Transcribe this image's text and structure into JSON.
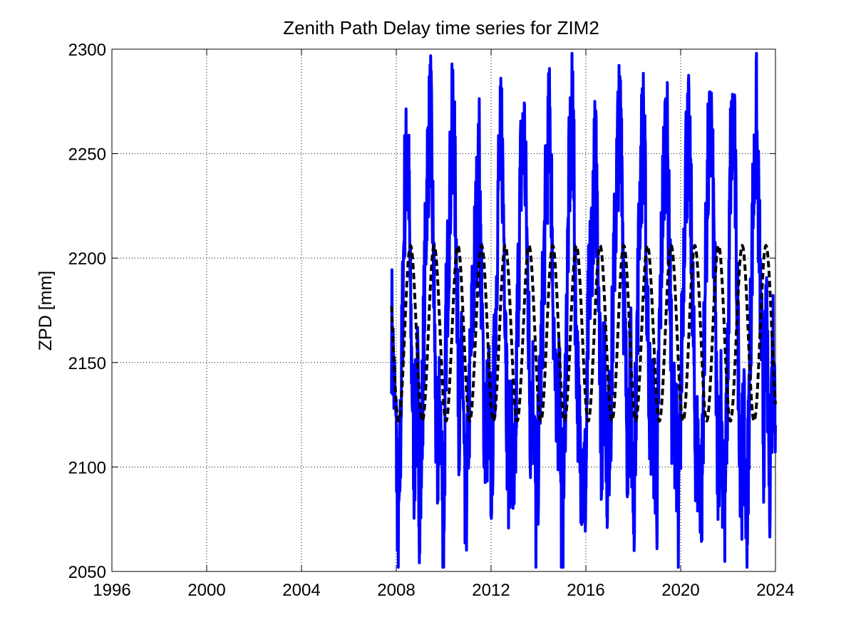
{
  "chart_data": {
    "type": "line",
    "title": "Zenith Path Delay time series for ZIM2",
    "xlabel": "",
    "ylabel": "ZPD [mm]",
    "xlim": [
      1996,
      2024
    ],
    "ylim": [
      2050,
      2300
    ],
    "x_ticks": [
      1996,
      2000,
      2004,
      2008,
      2012,
      2016,
      2020,
      2024
    ],
    "y_ticks": [
      2050,
      2100,
      2150,
      2200,
      2250,
      2300
    ],
    "x_tick_labels": [
      "1996",
      "2000",
      "2004",
      "2008",
      "2012",
      "2016",
      "2020",
      "2024"
    ],
    "y_tick_labels": [
      "2050",
      "2100",
      "2150",
      "2200",
      "2250",
      "2300"
    ],
    "grid": true,
    "series": [
      {
        "style": "solid",
        "color": "#0000ff",
        "description": "observed ZPD values",
        "x": [
          2007.8,
          2008.0,
          2008.1,
          2008.2,
          2008.35,
          2008.5,
          2008.6,
          2008.75,
          2008.9,
          2009.0,
          2009.15,
          2009.3,
          2009.45,
          2009.6,
          2009.7,
          2009.85,
          2010.0,
          2010.1,
          2010.25,
          2010.4,
          2010.55,
          2010.65,
          2010.8,
          2010.9,
          2011.05,
          2011.2,
          2011.35,
          2011.5,
          2011.6,
          2011.75,
          2011.9,
          2012.0,
          2012.15,
          2012.3,
          2012.45,
          2012.6,
          2012.7,
          2012.85,
          2013.0,
          2013.1,
          2013.25,
          2013.4,
          2013.55,
          2013.65,
          2013.8,
          2013.9,
          2014.05,
          2014.2,
          2014.35,
          2014.5,
          2014.6,
          2014.75,
          2014.9,
          2015.0,
          2015.15,
          2015.3,
          2015.45,
          2015.55,
          2015.7,
          2015.85,
          2016.0,
          2016.1,
          2016.25,
          2016.4,
          2016.55,
          2016.65,
          2016.8,
          2016.9,
          2017.05,
          2017.2,
          2017.35,
          2017.5,
          2017.6,
          2017.75,
          2017.9,
          2018.0,
          2018.15,
          2018.3,
          2018.45,
          2018.55,
          2018.7,
          2018.85,
          2019.0,
          2019.1,
          2019.25,
          2019.4,
          2019.55,
          2019.65,
          2019.8,
          2019.9,
          2020.05,
          2020.2,
          2020.35,
          2020.5,
          2020.6,
          2020.75,
          2020.9,
          2021.0,
          2021.15,
          2021.3,
          2021.45,
          2021.55,
          2021.7,
          2021.85,
          2022.0,
          2022.1,
          2022.25,
          2022.4,
          2022.55,
          2022.65,
          2022.8,
          2022.9,
          2023.05,
          2023.2,
          2023.35,
          2023.5,
          2023.6,
          2023.75,
          2023.9,
          2024.0
        ],
        "y": [
          2170,
          2110,
          2065,
          2130,
          2230,
          2258,
          2175,
          2105,
          2140,
          2072,
          2160,
          2240,
          2270,
          2180,
          2095,
          2130,
          2068,
          2165,
          2225,
          2275,
          2195,
          2125,
          2150,
          2068,
          2120,
          2170,
          2210,
          2245,
          2175,
          2110,
          2135,
          2095,
          2150,
          2235,
          2260,
          2185,
          2100,
          2120,
          2075,
          2165,
          2240,
          2260,
          2190,
          2125,
          2140,
          2070,
          2130,
          2185,
          2245,
          2265,
          2195,
          2115,
          2145,
          2052,
          2150,
          2240,
          2278,
          2185,
          2120,
          2100,
          2090,
          2170,
          2210,
          2250,
          2195,
          2110,
          2155,
          2100,
          2130,
          2200,
          2255,
          2270,
          2180,
          2115,
          2145,
          2072,
          2160,
          2240,
          2265,
          2195,
          2130,
          2120,
          2090,
          2160,
          2230,
          2270,
          2190,
          2115,
          2130,
          2062,
          2160,
          2245,
          2255,
          2190,
          2120,
          2100,
          2090,
          2170,
          2240,
          2262,
          2180,
          2100,
          2130,
          2070,
          2155,
          2245,
          2265,
          2175,
          2090,
          2120,
          2070,
          2140,
          2225,
          2265,
          2190,
          2110,
          2170,
          2095,
          2160,
          2120
        ]
      },
      {
        "style": "dashed",
        "color": "#000000",
        "description": "seasonal model fit",
        "amplitude": 42,
        "mean": 2164,
        "period_years": 1,
        "peak_phase": 0.6
      }
    ]
  }
}
